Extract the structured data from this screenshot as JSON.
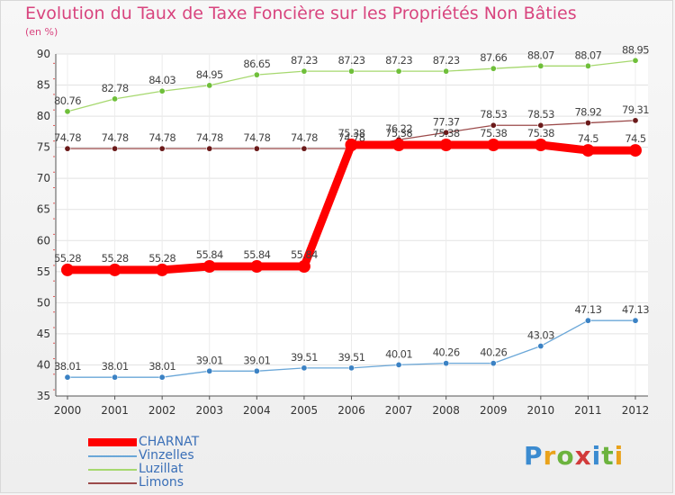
{
  "chart_data": {
    "type": "line",
    "title": "Evolution du Taux de Taxe Foncière sur les Propriétés Non Bâties",
    "ylabel": "(en %)",
    "xlabel": "",
    "ylim": [
      35,
      90
    ],
    "yticks": [
      35,
      40,
      45,
      50,
      55,
      60,
      65,
      70,
      75,
      80,
      85,
      90
    ],
    "x": [
      "2000",
      "2001",
      "2002",
      "2003",
      "2004",
      "2005",
      "2006",
      "2007",
      "2008",
      "2009",
      "2010",
      "2011",
      "2012"
    ],
    "series": [
      {
        "name": "Luzillat",
        "color": "#a6d86e",
        "marker": "#6fbf3a",
        "values": [
          80.76,
          82.78,
          84.03,
          84.95,
          86.65,
          87.23,
          87.23,
          87.23,
          87.23,
          87.66,
          88.07,
          88.07,
          88.95
        ],
        "labels": [
          "80.76",
          "82.78",
          "84.03",
          "84.95",
          "86.65",
          "87.23",
          "87.23",
          "87.23",
          "87.23",
          "87.66",
          "88.07",
          "88.07",
          "88.95"
        ]
      },
      {
        "name": "Limons",
        "color": "#9b4a4a",
        "marker": "#6b1a1a",
        "values": [
          74.78,
          74.78,
          74.78,
          74.78,
          74.78,
          74.78,
          74.78,
          76.22,
          77.37,
          78.53,
          78.53,
          78.92,
          79.31
        ],
        "labels": [
          "74.78",
          "74.78",
          "74.78",
          "74.78",
          "74.78",
          "74.78",
          "74.78",
          "76.22",
          "77.37",
          "78.53",
          "78.53",
          "78.92",
          "79.31"
        ]
      },
      {
        "name": "CHARNAT",
        "color": "#ff0000",
        "marker": "#ff0000",
        "values": [
          55.28,
          55.28,
          55.28,
          55.84,
          55.84,
          55.84,
          75.38,
          75.38,
          75.38,
          75.38,
          75.38,
          74.5,
          74.5
        ],
        "labels": [
          "55.28",
          "55.28",
          "55.28",
          "55.84",
          "55.84",
          "55.84",
          "75.38",
          "75.38",
          "75.38",
          "75.38",
          "75.38",
          "74.5",
          "74.5"
        ]
      },
      {
        "name": "Vinzelles",
        "color": "#6aa7d8",
        "marker": "#3b82c4",
        "values": [
          38.01,
          38.01,
          38.01,
          39.01,
          39.01,
          39.51,
          39.51,
          40.01,
          40.26,
          40.26,
          43.03,
          47.13,
          47.13
        ],
        "labels": [
          "38.01",
          "38.01",
          "38.01",
          "39.01",
          "39.01",
          "39.51",
          "39.51",
          "40.01",
          "40.26",
          "40.26",
          "43.03",
          "47.13",
          "47.13"
        ]
      }
    ],
    "legend": [
      "CHARNAT",
      "Vinzelles",
      "Luzillat",
      "Limons"
    ],
    "legend_position": "bottom-left"
  },
  "logo": {
    "letters": [
      "P",
      "r",
      "o",
      "x",
      "i",
      "t",
      "i"
    ]
  }
}
